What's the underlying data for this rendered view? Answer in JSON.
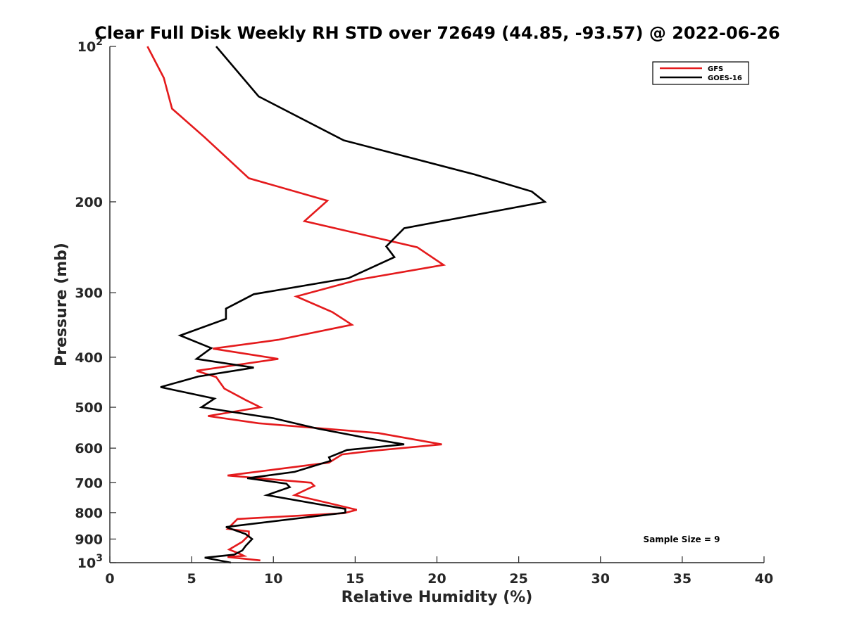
{
  "chart_data": {
    "type": "line",
    "title": "Clear Full Disk Weekly RH STD over 72649 (44.85, -93.57) @ 2022-06-26",
    "xlabel": "Relative Humidity (%)",
    "ylabel": "Pressure (mb)",
    "xlim": [
      0,
      40
    ],
    "ylim": [
      100,
      1000
    ],
    "y_scale": "log",
    "y_reversed": true,
    "grid": false,
    "legend_position": "top-right",
    "x_ticks": [
      0,
      5,
      10,
      15,
      20,
      25,
      30,
      35,
      40
    ],
    "x_tick_labels": [
      "0",
      "5",
      "10",
      "15",
      "20",
      "25",
      "30",
      "35",
      "40"
    ],
    "y_ticks": [
      {
        "value": 100,
        "label": "10",
        "sup": "2"
      },
      {
        "value": 200,
        "label": "200",
        "sup": ""
      },
      {
        "value": 300,
        "label": "300",
        "sup": ""
      },
      {
        "value": 400,
        "label": "400",
        "sup": ""
      },
      {
        "value": 500,
        "label": "500",
        "sup": ""
      },
      {
        "value": 600,
        "label": "600",
        "sup": ""
      },
      {
        "value": 700,
        "label": "700",
        "sup": ""
      },
      {
        "value": 800,
        "label": "800",
        "sup": ""
      },
      {
        "value": 900,
        "label": "900",
        "sup": ""
      },
      {
        "value": 1000,
        "label": "10",
        "sup": "3"
      }
    ],
    "annotation": "Sample Size = 9",
    "series": [
      {
        "name": "GFS",
        "color": "#e41a1c",
        "points": [
          [
            2.3,
            100
          ],
          [
            3.3,
            115
          ],
          [
            3.8,
            132
          ],
          [
            5.8,
            150
          ],
          [
            8.5,
            180
          ],
          [
            13.3,
            199
          ],
          [
            11.9,
            218
          ],
          [
            18.8,
            245
          ],
          [
            20.4,
            265
          ],
          [
            15.2,
            283
          ],
          [
            11.4,
            305
          ],
          [
            13.6,
            327
          ],
          [
            14.8,
            346
          ],
          [
            10.3,
            370
          ],
          [
            6.3,
            385
          ],
          [
            10.3,
            403
          ],
          [
            5.3,
            425
          ],
          [
            6.5,
            437
          ],
          [
            7.0,
            460
          ],
          [
            8.3,
            484
          ],
          [
            9.2,
            500
          ],
          [
            6.0,
            520
          ],
          [
            9.1,
            537
          ],
          [
            16.4,
            561
          ],
          [
            20.3,
            590
          ],
          [
            16.1,
            607
          ],
          [
            14.2,
            617
          ],
          [
            13.4,
            640
          ],
          [
            7.2,
            678
          ],
          [
            12.3,
            700
          ],
          [
            12.5,
            710
          ],
          [
            11.3,
            740
          ],
          [
            13.4,
            767
          ],
          [
            15.1,
            790
          ],
          [
            14.3,
            802
          ],
          [
            7.8,
            823
          ],
          [
            7.2,
            860
          ],
          [
            8.5,
            870
          ],
          [
            8.5,
            885
          ],
          [
            8.1,
            911
          ],
          [
            7.3,
            943
          ],
          [
            7.9,
            960
          ],
          [
            8.2,
            970
          ],
          [
            7.2,
            975
          ],
          [
            9.2,
            990
          ]
        ]
      },
      {
        "name": "GOES-16",
        "color": "#000000",
        "points": [
          [
            6.5,
            100
          ],
          [
            9.1,
            125
          ],
          [
            14.3,
            152
          ],
          [
            22.3,
            177
          ],
          [
            25.8,
            191
          ],
          [
            26.6,
            200
          ],
          [
            18.0,
            225
          ],
          [
            16.9,
            244
          ],
          [
            17.4,
            256
          ],
          [
            14.6,
            281
          ],
          [
            8.8,
            302
          ],
          [
            7.1,
            322
          ],
          [
            7.1,
            337
          ],
          [
            4.3,
            363
          ],
          [
            6.2,
            384
          ],
          [
            5.3,
            403
          ],
          [
            8.8,
            419
          ],
          [
            5.4,
            436
          ],
          [
            3.1,
            457
          ],
          [
            6.4,
            481
          ],
          [
            5.6,
            500
          ],
          [
            10.0,
            525
          ],
          [
            12.7,
            550
          ],
          [
            15.9,
            575
          ],
          [
            18.0,
            590
          ],
          [
            14.5,
            605
          ],
          [
            13.4,
            625
          ],
          [
            13.5,
            635
          ],
          [
            11.3,
            667
          ],
          [
            8.4,
            686
          ],
          [
            10.8,
            703
          ],
          [
            11.0,
            714
          ],
          [
            9.6,
            740
          ],
          [
            14.4,
            787
          ],
          [
            14.4,
            800
          ],
          [
            7.1,
            853
          ],
          [
            8.3,
            880
          ],
          [
            8.7,
            900
          ],
          [
            8.3,
            928
          ],
          [
            8.1,
            947
          ],
          [
            7.6,
            965
          ],
          [
            5.8,
            978
          ],
          [
            7.4,
            1000
          ]
        ]
      }
    ]
  }
}
